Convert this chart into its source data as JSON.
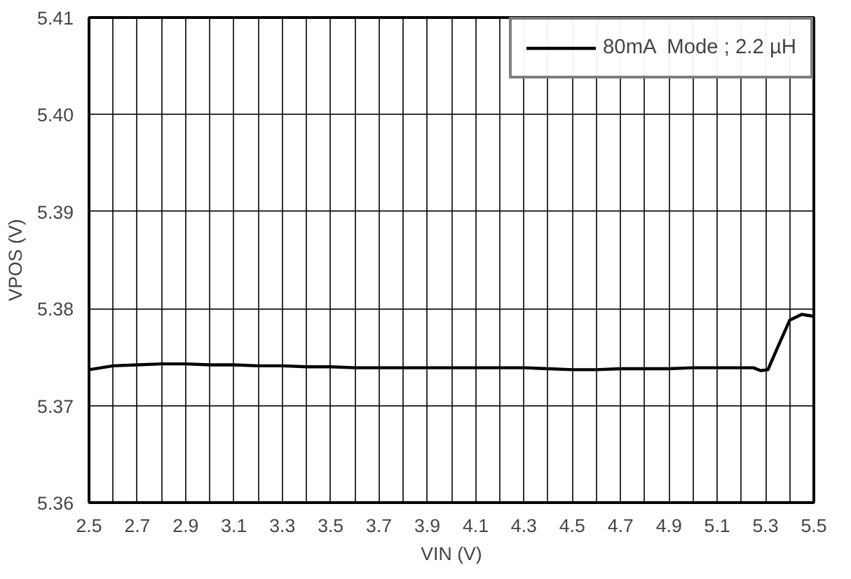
{
  "chart_data": {
    "type": "line",
    "xlabel": "VIN (V)",
    "ylabel": "VPOS (V)",
    "xlim": [
      2.5,
      5.5
    ],
    "ylim": [
      5.36,
      5.41
    ],
    "xticks": [
      2.5,
      {
        "value": 2.6,
        "label": null
      },
      2.7,
      {
        "value": 2.8,
        "label": null
      },
      2.9,
      {
        "value": 3.0,
        "label": null
      },
      3.1,
      {
        "value": 3.2,
        "label": null
      },
      3.3,
      {
        "value": 3.4,
        "label": null
      },
      3.5,
      {
        "value": 3.6,
        "label": null
      },
      3.7,
      {
        "value": 3.8,
        "label": null
      },
      3.9,
      {
        "value": 4.0,
        "label": null
      },
      4.1,
      {
        "value": 4.2,
        "label": null
      },
      4.3,
      {
        "value": 4.4,
        "label": null
      },
      4.5,
      {
        "value": 4.6,
        "label": null
      },
      4.7,
      {
        "value": 4.8,
        "label": null
      },
      4.9,
      {
        "value": 5.0,
        "label": null
      },
      5.1,
      {
        "value": 5.2,
        "label": null
      },
      5.3,
      {
        "value": 5.4,
        "label": null
      },
      5.5
    ],
    "yticks": [
      5.36,
      5.37,
      5.38,
      5.39,
      {
        "value": 5.4,
        "label": "5.40"
      },
      5.41
    ],
    "grid": true,
    "legend": "top right",
    "line_style": "solid",
    "series": [
      {
        "name": "80mA  Mode ; 2.2 µH",
        "color": "#000000",
        "x": [
          2.5,
          2.6,
          2.7,
          2.8,
          2.9,
          3.0,
          3.1,
          3.2,
          3.3,
          3.4,
          3.5,
          3.6,
          3.7,
          3.8,
          3.9,
          4.0,
          4.1,
          4.2,
          4.3,
          4.4,
          4.5,
          4.6,
          4.7,
          4.8,
          4.9,
          5.0,
          5.1,
          5.2,
          5.25,
          5.28,
          5.31,
          5.35,
          5.4,
          5.45,
          5.5
        ],
        "values": [
          5.3737,
          5.3741,
          5.3742,
          5.3743,
          5.3743,
          5.3742,
          5.3742,
          5.3741,
          5.3741,
          5.374,
          5.374,
          5.3739,
          5.3739,
          5.3739,
          5.3739,
          5.3739,
          5.3739,
          5.3739,
          5.3739,
          5.3738,
          5.3737,
          5.3737,
          5.3738,
          5.3738,
          5.3738,
          5.3739,
          5.3739,
          5.3739,
          5.3739,
          5.3736,
          5.3737,
          5.376,
          5.3788,
          5.3794,
          5.3792
        ]
      }
    ]
  }
}
